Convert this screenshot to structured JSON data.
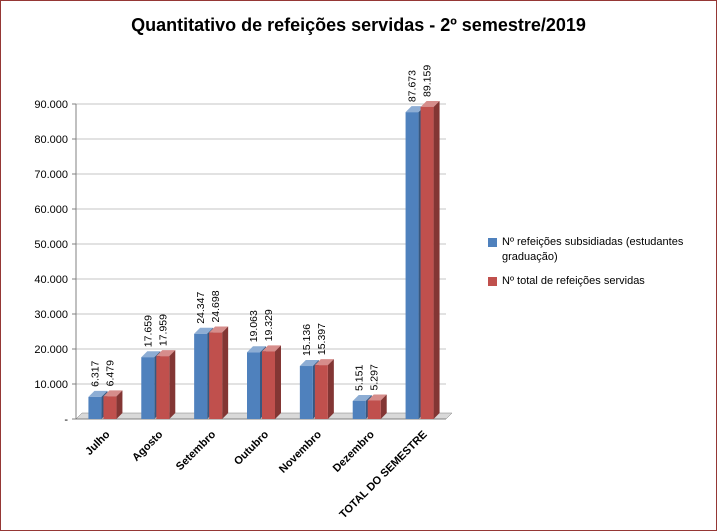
{
  "title": "Quantitativo de refeições servidas - 2º semestre/2019",
  "chart_data": {
    "type": "bar",
    "style": "3d-clustered-column",
    "title": "Quantitativo de refeições servidas - 2º semestre/2019",
    "categories": [
      "Julho",
      "Agosto",
      "Setembro",
      "Outubro",
      "Novembro",
      "Dezembro",
      "TOTAL DO SEMESTRE"
    ],
    "series": [
      {
        "name": "Nº refeições subsidiadas (estudantes graduação)",
        "color": "#4F81BD",
        "values": [
          6317,
          17659,
          24347,
          19063,
          15136,
          5151,
          87673
        ],
        "labels": [
          "6.317",
          "17.659",
          "24.347",
          "19.063",
          "15.136",
          "5.151",
          "87.673"
        ]
      },
      {
        "name": "Nº total  de refeições servidas",
        "color": "#C0504D",
        "values": [
          6479,
          17959,
          24698,
          19329,
          15397,
          5297,
          89159
        ],
        "labels": [
          "6.479",
          "17.959",
          "24.698",
          "19.329",
          "15.397",
          "5.297",
          "89.159"
        ]
      }
    ],
    "xlabel": "",
    "ylabel": "",
    "ylim": [
      0,
      90000
    ],
    "y_tick_step": 10000,
    "y_tick_labels": [
      "-",
      "10.000",
      "20.000",
      "30.000",
      "40.000",
      "50.000",
      "60.000",
      "70.000",
      "80.000",
      "90.000"
    ],
    "grid": true,
    "legend_position": "right"
  },
  "colors": {
    "border": "#953735",
    "gridline": "#C6C6C6",
    "axis": "#808080",
    "floor": "#D9D9D9",
    "text": "#000000",
    "background": "#FFFFFF"
  }
}
